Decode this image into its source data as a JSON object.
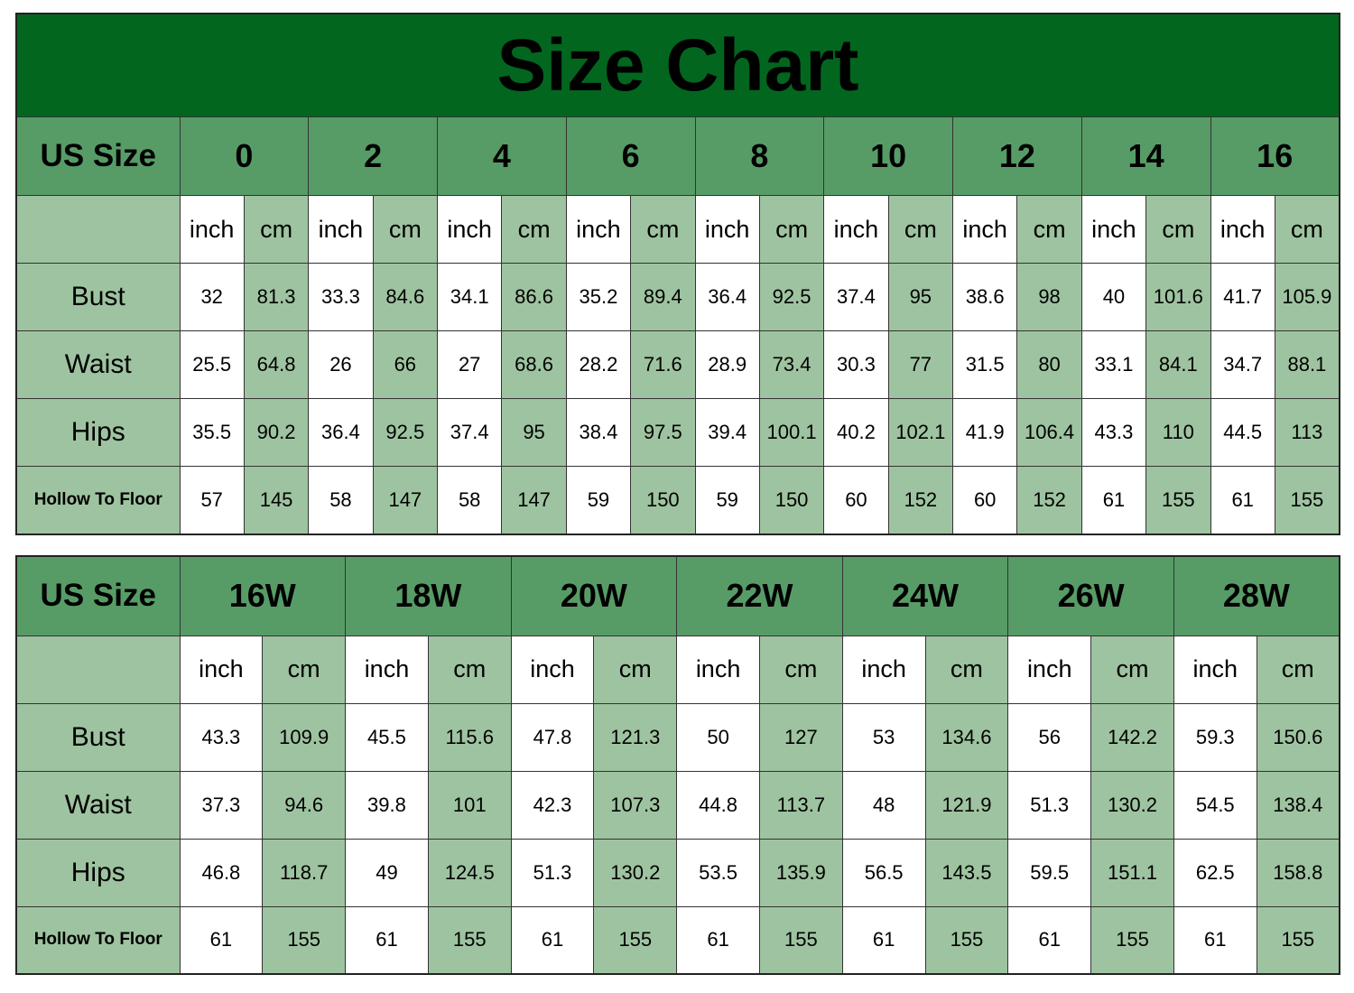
{
  "title": "Size Chart",
  "colors": {
    "title_bg": "#02661f",
    "header_bg": "#579c66",
    "label_bg": "#9ec3a0",
    "cell_bg": "#ffffff"
  },
  "units": {
    "inch": "inch",
    "cm": "cm"
  },
  "table1": {
    "header_label": "US Size",
    "sizes": [
      "0",
      "2",
      "4",
      "6",
      "8",
      "10",
      "12",
      "14",
      "16"
    ],
    "rows": [
      {
        "label": "Bust",
        "values": [
          "32",
          "81.3",
          "33.3",
          "84.6",
          "34.1",
          "86.6",
          "35.2",
          "89.4",
          "36.4",
          "92.5",
          "37.4",
          "95",
          "38.6",
          "98",
          "40",
          "101.6",
          "41.7",
          "105.9"
        ]
      },
      {
        "label": "Waist",
        "values": [
          "25.5",
          "64.8",
          "26",
          "66",
          "27",
          "68.6",
          "28.2",
          "71.6",
          "28.9",
          "73.4",
          "30.3",
          "77",
          "31.5",
          "80",
          "33.1",
          "84.1",
          "34.7",
          "88.1"
        ]
      },
      {
        "label": "Hips",
        "values": [
          "35.5",
          "90.2",
          "36.4",
          "92.5",
          "37.4",
          "95",
          "38.4",
          "97.5",
          "39.4",
          "100.1",
          "40.2",
          "102.1",
          "41.9",
          "106.4",
          "43.3",
          "110",
          "44.5",
          "113"
        ]
      },
      {
        "label": "Hollow To Floor",
        "values": [
          "57",
          "145",
          "58",
          "147",
          "58",
          "147",
          "59",
          "150",
          "59",
          "150",
          "60",
          "152",
          "60",
          "152",
          "61",
          "155",
          "61",
          "155"
        ]
      }
    ]
  },
  "table2": {
    "header_label": "US Size",
    "sizes": [
      "16W",
      "18W",
      "20W",
      "22W",
      "24W",
      "26W",
      "28W"
    ],
    "rows": [
      {
        "label": "Bust",
        "values": [
          "43.3",
          "109.9",
          "45.5",
          "115.6",
          "47.8",
          "121.3",
          "50",
          "127",
          "53",
          "134.6",
          "56",
          "142.2",
          "59.3",
          "150.6"
        ]
      },
      {
        "label": "Waist",
        "values": [
          "37.3",
          "94.6",
          "39.8",
          "101",
          "42.3",
          "107.3",
          "44.8",
          "113.7",
          "48",
          "121.9",
          "51.3",
          "130.2",
          "54.5",
          "138.4"
        ]
      },
      {
        "label": "Hips",
        "values": [
          "46.8",
          "118.7",
          "49",
          "124.5",
          "51.3",
          "130.2",
          "53.5",
          "135.9",
          "56.5",
          "143.5",
          "59.5",
          "151.1",
          "62.5",
          "158.8"
        ]
      },
      {
        "label": "Hollow To Floor",
        "values": [
          "61",
          "155",
          "61",
          "155",
          "61",
          "155",
          "61",
          "155",
          "61",
          "155",
          "61",
          "155",
          "61",
          "155"
        ]
      }
    ]
  }
}
